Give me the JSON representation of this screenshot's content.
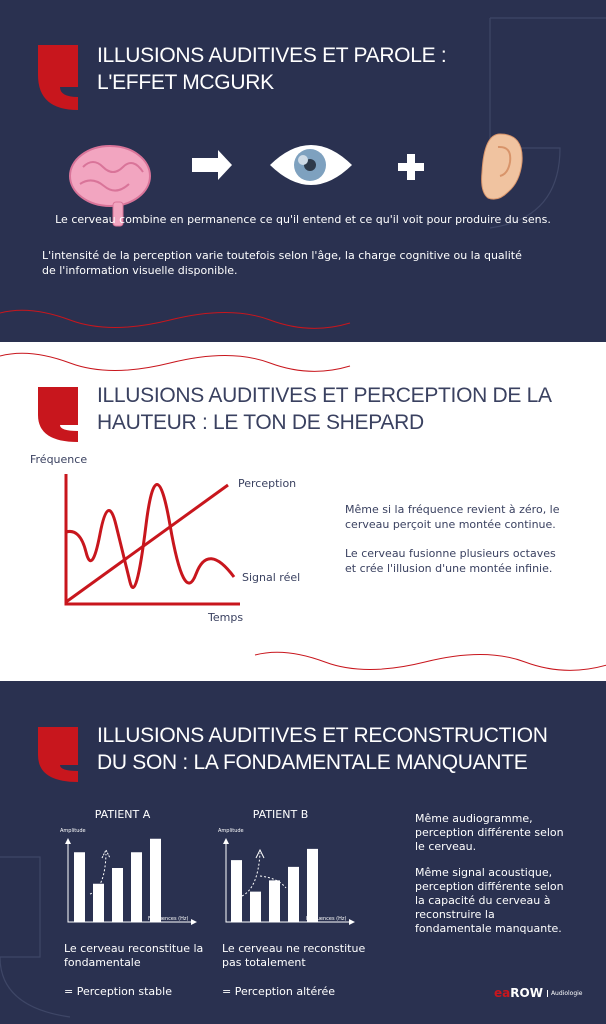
{
  "colors": {
    "navy": "#2a3150",
    "red": "#c8161d",
    "white": "#ffffff"
  },
  "section1": {
    "title_line1": "ILLUSIONS AUDITIVES ET PAROLE :",
    "title_line2": "L'EFFET MCGURK",
    "icons": [
      "brain-icon",
      "arrow-right-icon",
      "eye-icon",
      "plus-icon",
      "ear-icon"
    ],
    "caption": "Le cerveau combine en permanence ce qu'il entend et ce qu'il voit pour produire du sens.",
    "paragraph": "L'intensité de la perception varie toutefois selon l'âge, la charge cognitive ou la qualité de l'information visuelle disponible."
  },
  "section2": {
    "title_line1": "ILLUSIONS AUDITIVES ET PERCEPTION DE LA",
    "title_line2": "HAUTEUR : LE TON DE SHEPARD",
    "chart": {
      "y_label": "Fréquence",
      "x_label": "Temps",
      "line_label": "Perception",
      "signal_label": "Signal réel"
    },
    "text1": "Même si la fréquence revient à zéro, le cerveau perçoit une montée continue.",
    "text2": "Le cerveau fusionne plusieurs octaves et crée l'illusion d'une montée infinie."
  },
  "section3": {
    "title_line1": "ILLUSIONS AUDITIVES ET RECONSTRUCTION",
    "title_line2": "DU SON : LA FONDAMENTALE MANQUANTE",
    "patients": [
      {
        "label": "PATIENT A",
        "y_label": "Amplitude",
        "x_label": "Fréquences (Hz)",
        "bars": [
          0.62,
          0.34,
          0.48,
          0.62,
          0.74
        ],
        "desc": "Le cerveau reconstitue la fondamentale",
        "result": "= Perception stable"
      },
      {
        "label": "PATIENT B",
        "y_label": "Amplitude",
        "x_label": "Fréquences (Hz)",
        "bars": [
          0.55,
          0.27,
          0.37,
          0.49,
          0.65
        ],
        "desc": "Le cerveau ne reconstitue pas totalement",
        "result": "= Perception altérée"
      }
    ],
    "text1": "Même audiogramme, perception différente selon le cerveau.",
    "text2": "Même signal acoustique, perception différente selon la capacité du cerveau à reconstruire la fondamentale manquante."
  },
  "brand": {
    "logo": "eaROW",
    "tagline": "Audiologie"
  }
}
